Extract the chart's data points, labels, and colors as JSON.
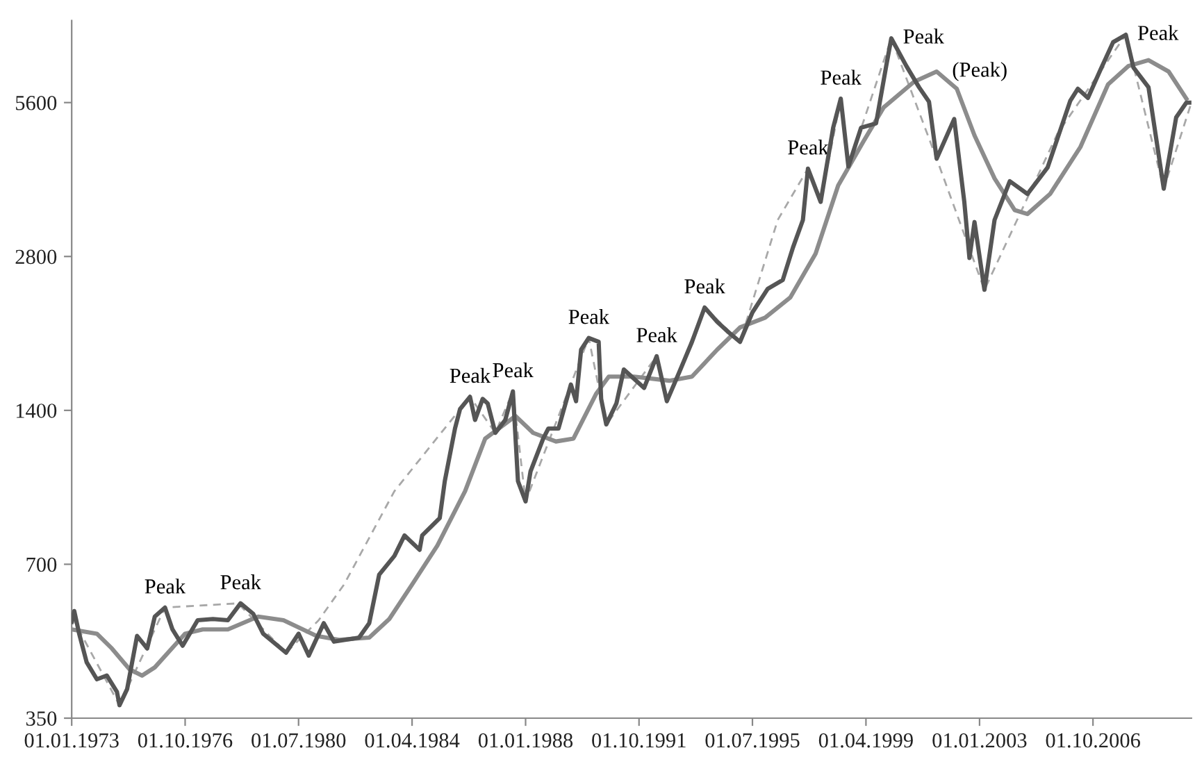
{
  "chart_data": {
    "type": "line",
    "log": true,
    "grid": false,
    "legend": false,
    "xlim": [
      "1973-01-01",
      "2010-01-01"
    ],
    "ylim": [
      350,
      8100
    ],
    "yticks": [
      350,
      700,
      1400,
      2800,
      5600
    ],
    "xticks": [
      {
        "value": "1973-01-01",
        "label": "01.01.1973"
      },
      {
        "value": "1976-10-01",
        "label": "01.10.1976"
      },
      {
        "value": "1980-07-01",
        "label": "01.07.1980"
      },
      {
        "value": "1984-04-01",
        "label": "01.04.1984"
      },
      {
        "value": "1988-01-01",
        "label": "01.01.1988"
      },
      {
        "value": "1991-10-01",
        "label": "01.10.1991"
      },
      {
        "value": "1995-07-01",
        "label": "01.07.1995"
      },
      {
        "value": "1999-04-01",
        "label": "01.04.1999"
      },
      {
        "value": "2003-01-01",
        "label": "01.01.2003"
      },
      {
        "value": "2006-10-01",
        "label": "01.10.2006"
      }
    ],
    "series": [
      {
        "color": "#a8a8a8",
        "line_style": "dashed",
        "x": [
          "1973-01",
          "1974-08",
          "1976-02",
          "1978-07",
          "1980-02",
          "1981-03",
          "1982-01",
          "1983-09",
          "1986-03",
          "1987-01",
          "1987-08",
          "1988-01",
          "1990-02",
          "1990-09",
          "1992-05",
          "1992-09",
          "1993-12",
          "1995-02",
          "1996-05",
          "1997-05",
          "1997-10",
          "1998-06",
          "1998-09",
          "2000-02",
          "2001-08",
          "2003-03",
          "2005-08",
          "2007-11",
          "2009-02",
          "2010-01"
        ],
        "values": [
          553,
          371,
          576,
          587,
          470,
          544,
          639,
          973,
          1488,
          1265,
          1525,
          929,
          1940,
          1314,
          1787,
          1459,
          2225,
          1906,
          3300,
          4160,
          3580,
          5700,
          4200,
          7480,
          4350,
          2410,
          4880,
          7600,
          3800,
          5600
        ]
      },
      {
        "color": "#8c8c8c",
        "x": [
          "1973-01",
          "1973-11",
          "1974-05",
          "1974-12",
          "1975-05",
          "1975-10",
          "1976-10",
          "1977-05",
          "1978-03",
          "1979-03",
          "1980-01",
          "1981-02",
          "1981-11",
          "1982-11",
          "1983-07",
          "1984-04",
          "1985-02",
          "1986-01",
          "1986-09",
          "1987-09",
          "1988-04",
          "1989-01",
          "1989-08",
          "1990-05",
          "1990-10",
          "1991-08",
          "1992-10",
          "1993-07",
          "1994-05",
          "1995-02",
          "1995-12",
          "1996-10",
          "1997-08",
          "1998-05",
          "1999-03",
          "1999-11",
          "2000-11",
          "2001-08",
          "2002-04",
          "2002-11",
          "2003-07",
          "2004-03",
          "2004-08",
          "2005-05",
          "2006-05",
          "2007-04",
          "2007-12",
          "2008-08",
          "2009-04",
          "2009-11"
        ],
        "values": [
          522,
          512,
          479,
          436,
          424,
          440,
          512,
          522,
          522,
          553,
          544,
          507,
          498,
          503,
          547,
          639,
          762,
          973,
          1233,
          1365,
          1265,
          1217,
          1233,
          1508,
          1630,
          1630,
          1600,
          1630,
          1840,
          2034,
          2125,
          2330,
          2835,
          3855,
          4700,
          5480,
          6150,
          6440,
          5960,
          4830,
          3980,
          3450,
          3390,
          3710,
          4580,
          6080,
          6600,
          6780,
          6440,
          5700
        ]
      },
      {
        "color": "#555555",
        "x": [
          "1973-01",
          "1973-02",
          "1973-04",
          "1973-07",
          "1973-11",
          "1974-03",
          "1974-07",
          "1974-08",
          "1974-11",
          "1975-03",
          "1975-07",
          "1975-10",
          "1976-02",
          "1976-05",
          "1976-09",
          "1977-03",
          "1977-09",
          "1978-03",
          "1978-08",
          "1979-01",
          "1979-05",
          "1980-02",
          "1980-07",
          "1980-11",
          "1981-05",
          "1981-09",
          "1982-07",
          "1982-11",
          "1983-03",
          "1983-09",
          "1984-01",
          "1984-07",
          "1984-08",
          "1985-03",
          "1985-05",
          "1985-09",
          "1985-11",
          "1986-03",
          "1986-05",
          "1986-08",
          "1986-10",
          "1987-01",
          "1987-05",
          "1987-08",
          "1987-10",
          "1988-01",
          "1988-03",
          "1988-08",
          "1988-10",
          "1989-02",
          "1989-07",
          "1989-09",
          "1989-11",
          "1990-02",
          "1990-06",
          "1990-07",
          "1990-09",
          "1991-01",
          "1991-04",
          "1991-12",
          "1992-05",
          "1992-09",
          "1993-02",
          "1993-07",
          "1993-12",
          "1994-05",
          "1994-09",
          "1995-02",
          "1995-07",
          "1996-01",
          "1996-07",
          "1996-11",
          "1997-03",
          "1997-05",
          "1997-10",
          "1998-03",
          "1998-06",
          "1998-09",
          "1999-02",
          "1999-08",
          "1999-12",
          "2000-02",
          "2000-08",
          "2001-01",
          "2001-05",
          "2001-08",
          "2001-11",
          "2002-03",
          "2002-07",
          "2002-09",
          "2002-11",
          "2003-03",
          "2003-07",
          "2004-01",
          "2004-08",
          "2005-04",
          "2006-01",
          "2006-04",
          "2006-08",
          "2007-01",
          "2007-06",
          "2007-11",
          "2008-02",
          "2008-08",
          "2009-02",
          "2009-07",
          "2009-11",
          "2010-01"
        ],
        "values": [
          540,
          567,
          512,
          450,
          417,
          424,
          394,
          371,
          399,
          507,
          479,
          553,
          576,
          522,
          485,
          544,
          547,
          544,
          587,
          560,
          512,
          470,
          512,
          464,
          537,
          494,
          503,
          537,
          668,
          727,
          797,
          747,
          797,
          862,
          1018,
          1290,
          1408,
          1488,
          1341,
          1474,
          1444,
          1265,
          1341,
          1525,
          1018,
          929,
          1064,
          1233,
          1290,
          1290,
          1573,
          1459,
          1840,
          1940,
          1906,
          1474,
          1314,
          1444,
          1683,
          1549,
          1787,
          1459,
          1667,
          1906,
          2225,
          2087,
          2000,
          1906,
          2177,
          2420,
          2518,
          2915,
          3300,
          4160,
          3580,
          5000,
          5700,
          4200,
          5000,
          5100,
          6600,
          7480,
          6600,
          6000,
          5620,
          4350,
          4700,
          5200,
          3580,
          2780,
          3270,
          2410,
          3300,
          3930,
          3710,
          4180,
          5650,
          5960,
          5720,
          6500,
          7350,
          7600,
          6560,
          6000,
          3800,
          5240,
          5600,
          5600
        ]
      }
    ],
    "annotations": [
      {
        "text": "Peak",
        "x": "1976-02",
        "y": 576
      },
      {
        "text": "Peak",
        "x": "1978-08",
        "y": 587
      },
      {
        "text": "Peak",
        "x": "1986-03",
        "y": 1488
      },
      {
        "text": "Peak",
        "x": "1987-08",
        "y": 1525
      },
      {
        "text": "Peak",
        "x": "1990-02",
        "y": 1940
      },
      {
        "text": "Peak",
        "x": "1992-05",
        "y": 1787
      },
      {
        "text": "Peak",
        "x": "1993-12",
        "y": 2225
      },
      {
        "text": "Peak",
        "x": "1997-05",
        "y": 4160
      },
      {
        "text": "Peak",
        "x": "1998-06",
        "y": 5700
      },
      {
        "text": "Peak",
        "x": "2000-02",
        "y": 7480
      },
      {
        "text": "(Peak)",
        "x": "2001-08",
        "y": 6440
      },
      {
        "text": "Peak",
        "x": "2007-11",
        "y": 7600
      }
    ]
  }
}
